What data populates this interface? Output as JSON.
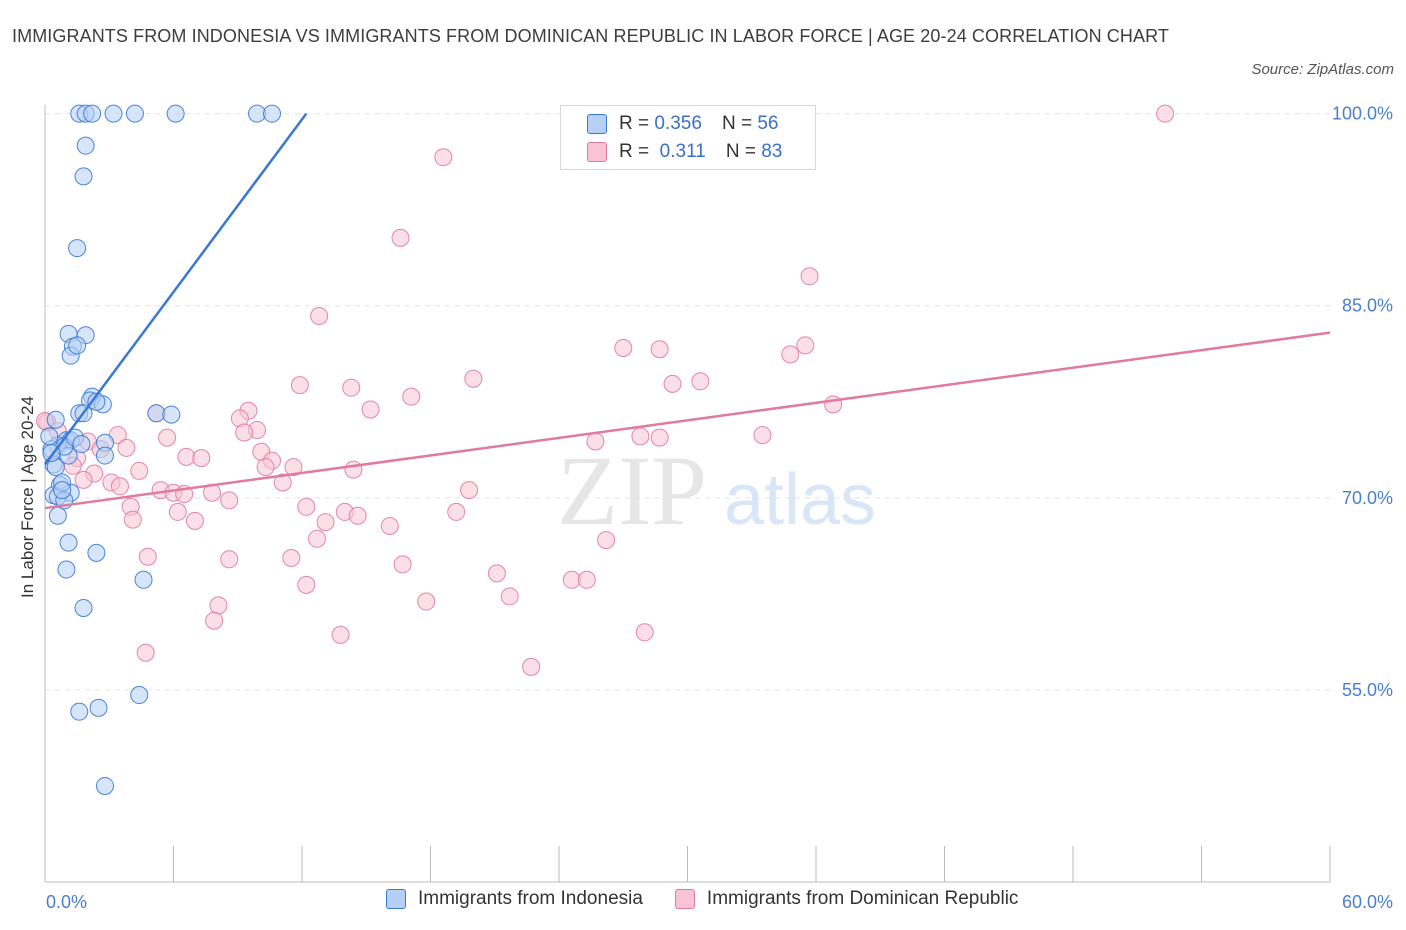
{
  "title": "IMMIGRANTS FROM INDONESIA VS IMMIGRANTS FROM DOMINICAN REPUBLIC IN LABOR FORCE | AGE 20-24 CORRELATION CHART",
  "source": "Source: ZipAtlas.com",
  "watermark": {
    "zip": "ZIP",
    "atlas": "atlas"
  },
  "colors": {
    "blue": "#3a78d4",
    "pink": "#e07aa0",
    "blue_fill": "#b6d0f5",
    "pink_fill": "#f8c4d4",
    "tick_text": "#4a7fcf",
    "grid": "#e2e2e2"
  },
  "legend": {
    "rows": [
      {
        "r_label": "R =",
        "r_value": "0.356",
        "n_label": "N =",
        "n_value": "56"
      },
      {
        "r_label": "R =",
        "r_value": "0.311",
        "n_label": "N =",
        "n_value": "83"
      }
    ]
  },
  "bottom_legend": [
    "Immigrants from Indonesia",
    "Immigrants from Dominican Republic"
  ],
  "chart_data": {
    "type": "scatter",
    "title": "IMMIGRANTS FROM INDONESIA VS IMMIGRANTS FROM DOMINICAN REPUBLIC IN LABOR FORCE | AGE 20-24 CORRELATION CHART",
    "xlabel": "",
    "ylabel": "In Labor Force | Age 20-24",
    "xlim": [
      0,
      60
    ],
    "ylim": [
      40,
      101.3
    ],
    "x_tick_labels": [
      "0.0%",
      "60.0%"
    ],
    "y_ticks": [
      55,
      70,
      85,
      100
    ],
    "y_tick_labels": [
      "55.0%",
      "70.0%",
      "85.0%",
      "100.0%"
    ],
    "legend_position": "top-center",
    "series": [
      {
        "name": "Immigrants from Indonesia",
        "r": 0.356,
        "n": 56,
        "trend": [
          [
            0.0,
            72.6
          ],
          [
            12.2,
            100.0
          ]
        ],
        "points": [
          [
            1.6,
            100.0
          ],
          [
            1.9,
            100.0
          ],
          [
            2.2,
            100.0
          ],
          [
            3.2,
            100.0
          ],
          [
            4.2,
            100.0
          ],
          [
            6.1,
            100.0
          ],
          [
            9.9,
            100.0
          ],
          [
            10.6,
            100.0
          ],
          [
            1.9,
            97.5
          ],
          [
            1.8,
            95.1
          ],
          [
            1.5,
            89.5
          ],
          [
            1.1,
            82.8
          ],
          [
            1.3,
            81.8
          ],
          [
            1.9,
            82.7
          ],
          [
            1.2,
            81.1
          ],
          [
            1.5,
            81.9
          ],
          [
            2.2,
            77.9
          ],
          [
            2.1,
            77.6
          ],
          [
            2.7,
            77.3
          ],
          [
            1.6,
            76.6
          ],
          [
            1.8,
            76.6
          ],
          [
            5.2,
            76.6
          ],
          [
            5.9,
            76.5
          ],
          [
            0.5,
            76.1
          ],
          [
            1.0,
            74.5
          ],
          [
            1.2,
            74.5
          ],
          [
            0.6,
            74.1
          ],
          [
            0.3,
            73.8
          ],
          [
            1.1,
            73.3
          ],
          [
            2.8,
            74.3
          ],
          [
            2.8,
            73.3
          ],
          [
            0.9,
            74.0
          ],
          [
            0.4,
            72.6
          ],
          [
            0.5,
            72.4
          ],
          [
            0.7,
            71.0
          ],
          [
            1.2,
            70.4
          ],
          [
            0.4,
            70.2
          ],
          [
            0.6,
            70.1
          ],
          [
            0.9,
            69.8
          ],
          [
            0.6,
            68.6
          ],
          [
            1.1,
            66.5
          ],
          [
            2.4,
            65.7
          ],
          [
            1.0,
            64.4
          ],
          [
            4.6,
            63.6
          ],
          [
            1.8,
            61.4
          ],
          [
            4.4,
            54.6
          ],
          [
            1.6,
            53.3
          ],
          [
            2.5,
            53.6
          ],
          [
            2.8,
            47.5
          ],
          [
            0.2,
            74.8
          ],
          [
            1.4,
            74.7
          ],
          [
            0.8,
            71.2
          ],
          [
            0.3,
            73.5
          ],
          [
            1.7,
            74.2
          ],
          [
            0.8,
            70.6
          ],
          [
            2.4,
            77.5
          ]
        ]
      },
      {
        "name": "Immigrants from Dominican Republic",
        "r": 0.311,
        "n": 83,
        "trend": [
          [
            0.0,
            69.2
          ],
          [
            60.0,
            82.9
          ]
        ],
        "points": [
          [
            52.3,
            100.0
          ],
          [
            18.6,
            96.6
          ],
          [
            16.6,
            90.3
          ],
          [
            35.7,
            87.3
          ],
          [
            12.8,
            84.2
          ],
          [
            27.0,
            81.7
          ],
          [
            28.7,
            81.6
          ],
          [
            34.8,
            81.2
          ],
          [
            35.5,
            81.9
          ],
          [
            11.9,
            78.8
          ],
          [
            14.3,
            78.6
          ],
          [
            20.0,
            79.3
          ],
          [
            29.3,
            78.9
          ],
          [
            30.6,
            79.1
          ],
          [
            17.1,
            77.9
          ],
          [
            36.8,
            77.3
          ],
          [
            5.2,
            76.6
          ],
          [
            9.5,
            76.8
          ],
          [
            9.1,
            76.2
          ],
          [
            9.9,
            75.3
          ],
          [
            9.3,
            75.1
          ],
          [
            0.1,
            75.9
          ],
          [
            3.4,
            74.9
          ],
          [
            5.7,
            74.7
          ],
          [
            25.7,
            74.4
          ],
          [
            28.7,
            74.7
          ],
          [
            33.5,
            74.9
          ],
          [
            2.0,
            74.4
          ],
          [
            2.6,
            73.8
          ],
          [
            3.8,
            73.9
          ],
          [
            10.1,
            73.6
          ],
          [
            6.6,
            73.2
          ],
          [
            7.3,
            73.1
          ],
          [
            10.6,
            72.9
          ],
          [
            10.3,
            72.4
          ],
          [
            11.6,
            72.4
          ],
          [
            14.4,
            72.2
          ],
          [
            4.4,
            72.1
          ],
          [
            2.3,
            71.9
          ],
          [
            1.5,
            73.1
          ],
          [
            1.8,
            71.4
          ],
          [
            3.1,
            71.2
          ],
          [
            11.1,
            71.2
          ],
          [
            5.4,
            70.6
          ],
          [
            6.0,
            70.4
          ],
          [
            6.5,
            70.3
          ],
          [
            7.8,
            70.4
          ],
          [
            19.8,
            70.6
          ],
          [
            8.6,
            69.8
          ],
          [
            4.0,
            69.3
          ],
          [
            12.2,
            69.3
          ],
          [
            19.2,
            68.9
          ],
          [
            6.2,
            68.9
          ],
          [
            14.0,
            68.9
          ],
          [
            14.6,
            68.6
          ],
          [
            4.1,
            68.3
          ],
          [
            7.0,
            68.2
          ],
          [
            13.1,
            68.1
          ],
          [
            16.1,
            67.8
          ],
          [
            12.7,
            66.8
          ],
          [
            26.2,
            66.7
          ],
          [
            4.8,
            65.4
          ],
          [
            8.6,
            65.2
          ],
          [
            11.5,
            65.3
          ],
          [
            16.7,
            64.8
          ],
          [
            21.1,
            64.1
          ],
          [
            24.6,
            63.6
          ],
          [
            25.3,
            63.6
          ],
          [
            12.2,
            63.2
          ],
          [
            21.7,
            62.3
          ],
          [
            17.8,
            61.9
          ],
          [
            8.1,
            61.6
          ],
          [
            7.9,
            60.4
          ],
          [
            13.8,
            59.3
          ],
          [
            28.0,
            59.5
          ],
          [
            4.7,
            57.9
          ],
          [
            22.7,
            56.8
          ],
          [
            0.0,
            76.0
          ],
          [
            15.2,
            76.9
          ],
          [
            0.6,
            75.2
          ],
          [
            27.8,
            74.8
          ],
          [
            1.3,
            72.5
          ],
          [
            3.5,
            70.9
          ]
        ]
      }
    ]
  }
}
